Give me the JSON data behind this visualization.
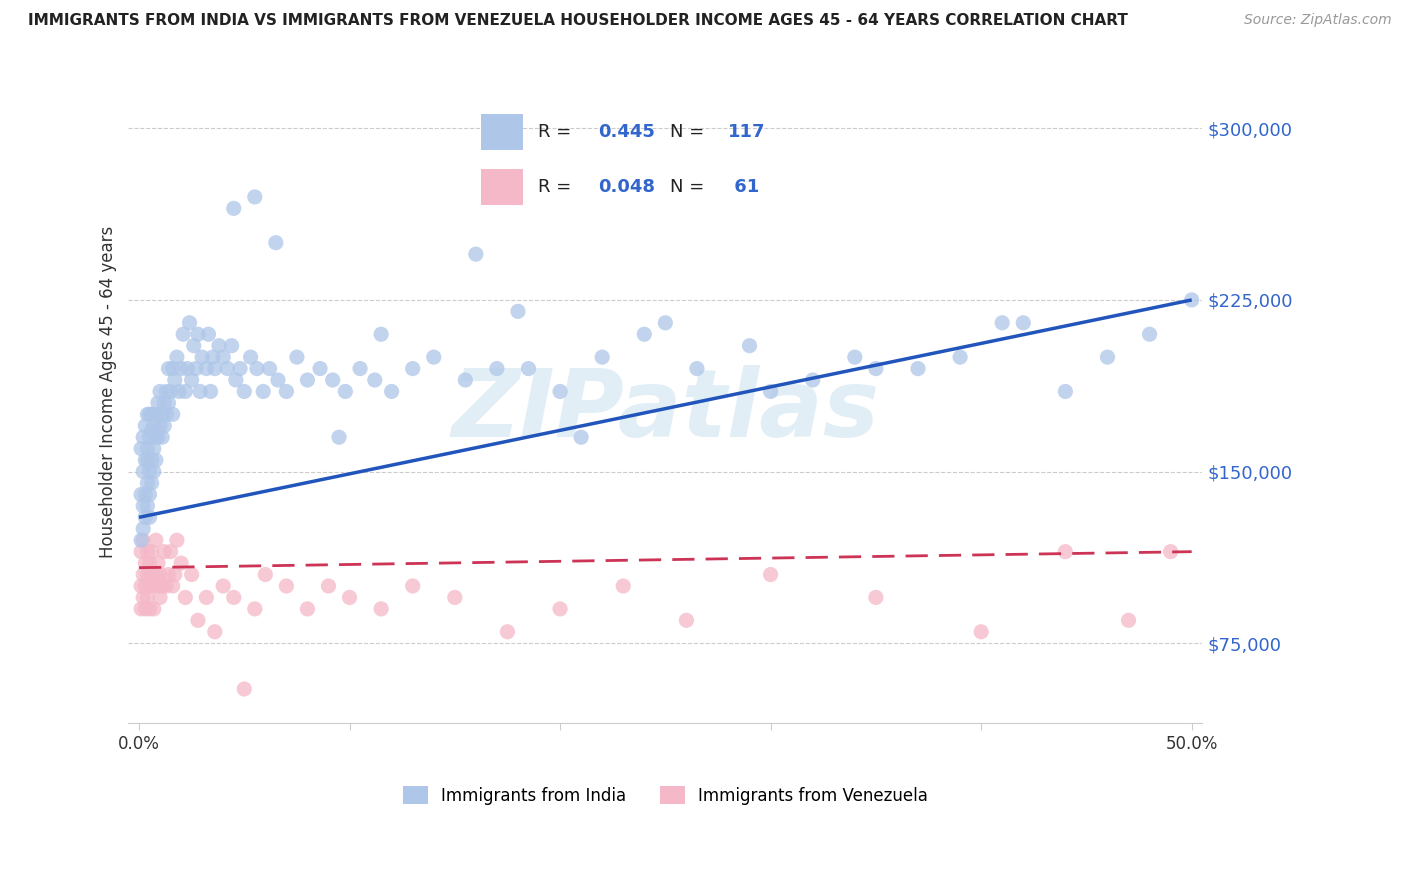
{
  "title": "IMMIGRANTS FROM INDIA VS IMMIGRANTS FROM VENEZUELA HOUSEHOLDER INCOME AGES 45 - 64 YEARS CORRELATION CHART",
  "source": "Source: ZipAtlas.com",
  "ylabel": "Householder Income Ages 45 - 64 years",
  "xlim": [
    -0.005,
    0.505
  ],
  "ylim": [
    40000,
    330000
  ],
  "yticks": [
    75000,
    150000,
    225000,
    300000
  ],
  "ytick_labels": [
    "$75,000",
    "$150,000",
    "$225,000",
    "$300,000"
  ],
  "xticks": [
    0.0,
    0.1,
    0.2,
    0.3,
    0.4,
    0.5
  ],
  "xtick_labels": [
    "0.0%",
    "",
    "",
    "",
    "",
    "50.0%"
  ],
  "india_color": "#aec6e8",
  "india_edge": "none",
  "venezuela_color": "#f4b8c8",
  "venezuela_edge": "none",
  "india_R": 0.445,
  "india_N": 117,
  "venezuela_R": 0.048,
  "venezuela_N": 61,
  "india_line_color": "#2255bb",
  "venezuela_line_color": "#cc3355",
  "watermark_text": "ZIPatlas",
  "india_line_x0": 0.0,
  "india_line_y0": 130000,
  "india_line_x1": 0.5,
  "india_line_y1": 225000,
  "venezuela_line_x0": 0.0,
  "venezuela_line_y0": 108000,
  "venezuela_line_x1": 0.5,
  "venezuela_line_y1": 115000,
  "india_scatter_x": [
    0.001,
    0.001,
    0.001,
    0.002,
    0.002,
    0.002,
    0.002,
    0.003,
    0.003,
    0.003,
    0.003,
    0.004,
    0.004,
    0.004,
    0.004,
    0.004,
    0.005,
    0.005,
    0.005,
    0.005,
    0.005,
    0.006,
    0.006,
    0.006,
    0.006,
    0.007,
    0.007,
    0.007,
    0.008,
    0.008,
    0.008,
    0.009,
    0.009,
    0.01,
    0.01,
    0.011,
    0.011,
    0.012,
    0.012,
    0.013,
    0.013,
    0.014,
    0.014,
    0.015,
    0.016,
    0.016,
    0.017,
    0.018,
    0.019,
    0.02,
    0.021,
    0.022,
    0.023,
    0.024,
    0.025,
    0.026,
    0.027,
    0.028,
    0.029,
    0.03,
    0.032,
    0.033,
    0.034,
    0.035,
    0.036,
    0.038,
    0.04,
    0.042,
    0.044,
    0.046,
    0.048,
    0.05,
    0.053,
    0.056,
    0.059,
    0.062,
    0.066,
    0.07,
    0.075,
    0.08,
    0.086,
    0.092,
    0.098,
    0.105,
    0.112,
    0.12,
    0.13,
    0.14,
    0.155,
    0.17,
    0.185,
    0.2,
    0.22,
    0.24,
    0.265,
    0.29,
    0.32,
    0.35,
    0.39,
    0.42,
    0.045,
    0.055,
    0.065,
    0.095,
    0.115,
    0.16,
    0.18,
    0.25,
    0.3,
    0.34,
    0.37,
    0.41,
    0.44,
    0.46,
    0.48,
    0.5,
    0.21
  ],
  "india_scatter_y": [
    120000,
    140000,
    160000,
    135000,
    150000,
    165000,
    125000,
    140000,
    155000,
    170000,
    130000,
    145000,
    160000,
    175000,
    135000,
    155000,
    150000,
    165000,
    140000,
    175000,
    130000,
    155000,
    168000,
    145000,
    175000,
    160000,
    150000,
    170000,
    165000,
    155000,
    175000,
    165000,
    180000,
    170000,
    185000,
    175000,
    165000,
    180000,
    170000,
    185000,
    175000,
    195000,
    180000,
    185000,
    195000,
    175000,
    190000,
    200000,
    185000,
    195000,
    210000,
    185000,
    195000,
    215000,
    190000,
    205000,
    195000,
    210000,
    185000,
    200000,
    195000,
    210000,
    185000,
    200000,
    195000,
    205000,
    200000,
    195000,
    205000,
    190000,
    195000,
    185000,
    200000,
    195000,
    185000,
    195000,
    190000,
    185000,
    200000,
    190000,
    195000,
    190000,
    185000,
    195000,
    190000,
    185000,
    195000,
    200000,
    190000,
    195000,
    195000,
    185000,
    200000,
    210000,
    195000,
    205000,
    190000,
    195000,
    200000,
    215000,
    265000,
    270000,
    250000,
    165000,
    210000,
    245000,
    220000,
    215000,
    185000,
    200000,
    195000,
    215000,
    185000,
    200000,
    210000,
    225000,
    165000
  ],
  "venezuela_scatter_x": [
    0.001,
    0.001,
    0.001,
    0.002,
    0.002,
    0.002,
    0.003,
    0.003,
    0.003,
    0.004,
    0.004,
    0.004,
    0.005,
    0.005,
    0.005,
    0.006,
    0.006,
    0.007,
    0.007,
    0.008,
    0.008,
    0.009,
    0.009,
    0.01,
    0.01,
    0.011,
    0.012,
    0.013,
    0.014,
    0.015,
    0.016,
    0.017,
    0.018,
    0.02,
    0.022,
    0.025,
    0.028,
    0.032,
    0.036,
    0.04,
    0.045,
    0.05,
    0.055,
    0.06,
    0.07,
    0.08,
    0.09,
    0.1,
    0.115,
    0.13,
    0.15,
    0.175,
    0.2,
    0.23,
    0.26,
    0.3,
    0.35,
    0.4,
    0.44,
    0.47,
    0.49
  ],
  "venezuela_scatter_y": [
    100000,
    115000,
    90000,
    105000,
    120000,
    95000,
    110000,
    100000,
    90000,
    105000,
    115000,
    95000,
    100000,
    110000,
    90000,
    105000,
    115000,
    100000,
    90000,
    105000,
    120000,
    100000,
    110000,
    105000,
    95000,
    100000,
    115000,
    100000,
    105000,
    115000,
    100000,
    105000,
    120000,
    110000,
    95000,
    105000,
    85000,
    95000,
    80000,
    100000,
    95000,
    55000,
    90000,
    105000,
    100000,
    90000,
    100000,
    95000,
    90000,
    100000,
    95000,
    80000,
    90000,
    100000,
    85000,
    105000,
    95000,
    80000,
    115000,
    85000,
    115000
  ]
}
